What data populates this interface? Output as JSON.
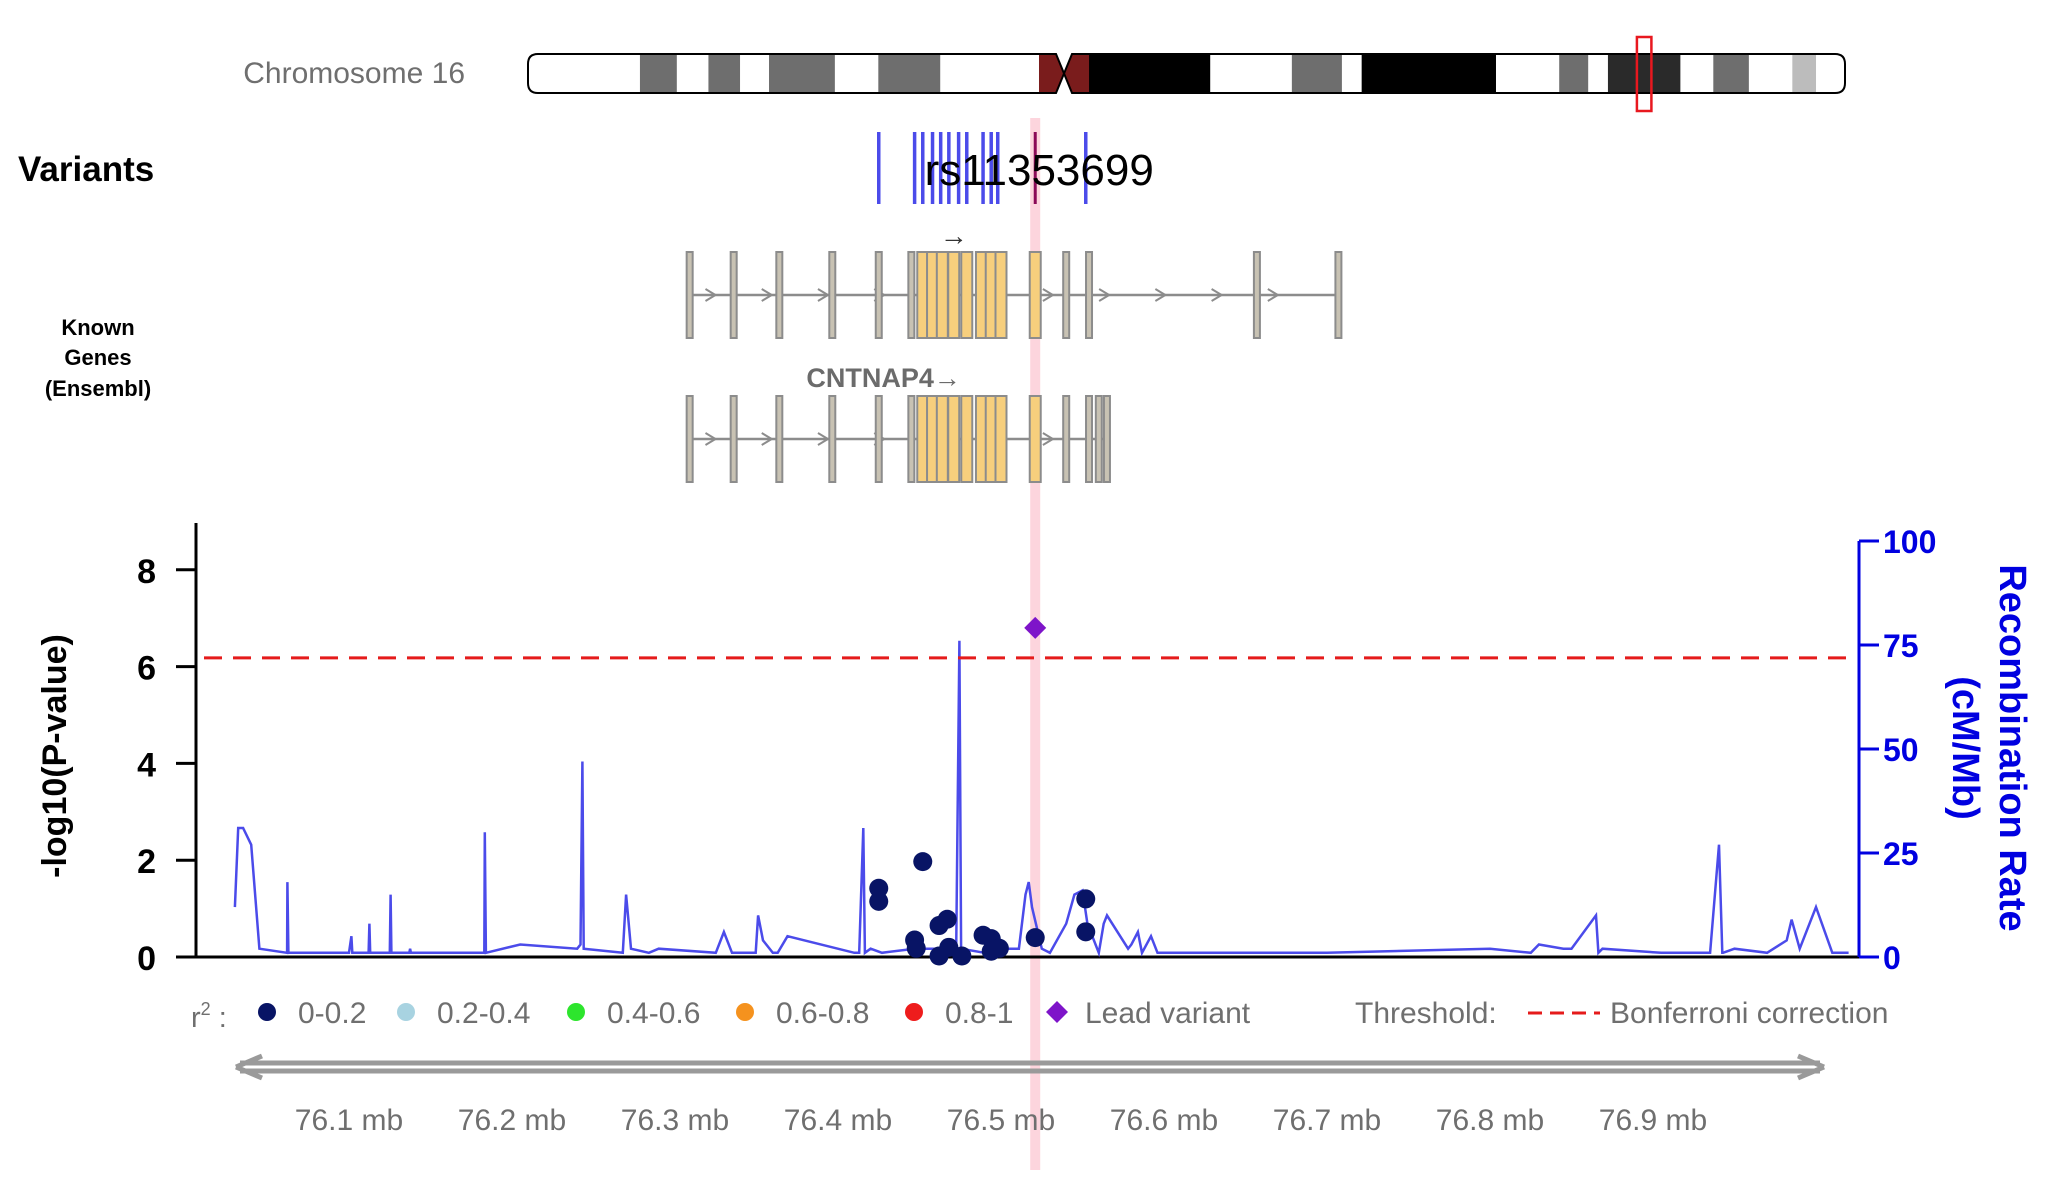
{
  "chromosome": {
    "label": "Chromosome 16",
    "bands": [
      {
        "from": 0.0,
        "to": 0.085,
        "fill": "#ffffff"
      },
      {
        "from": 0.085,
        "to": 0.113,
        "fill": "#6e6e6e"
      },
      {
        "from": 0.113,
        "to": 0.137,
        "fill": "#ffffff"
      },
      {
        "from": 0.137,
        "to": 0.161,
        "fill": "#6e6e6e"
      },
      {
        "from": 0.161,
        "to": 0.183,
        "fill": "#ffffff"
      },
      {
        "from": 0.183,
        "to": 0.233,
        "fill": "#6e6e6e"
      },
      {
        "from": 0.233,
        "to": 0.266,
        "fill": "#ffffff"
      },
      {
        "from": 0.266,
        "to": 0.313,
        "fill": "#6e6e6e"
      },
      {
        "from": 0.313,
        "to": 0.388,
        "fill": "#ffffff"
      },
      {
        "from": 0.388,
        "to": 0.426,
        "fill": "#7a1c1c"
      },
      {
        "from": 0.426,
        "to": 0.518,
        "fill": "#000000"
      },
      {
        "from": 0.518,
        "to": 0.58,
        "fill": "#ffffff"
      },
      {
        "from": 0.58,
        "to": 0.618,
        "fill": "#6e6e6e"
      },
      {
        "from": 0.618,
        "to": 0.633,
        "fill": "#ffffff"
      },
      {
        "from": 0.633,
        "to": 0.735,
        "fill": "#000000"
      },
      {
        "from": 0.735,
        "to": 0.783,
        "fill": "#ffffff"
      },
      {
        "from": 0.783,
        "to": 0.805,
        "fill": "#6e6e6e"
      },
      {
        "from": 0.805,
        "to": 0.82,
        "fill": "#ffffff"
      },
      {
        "from": 0.82,
        "to": 0.875,
        "fill": "#2a2a2a"
      },
      {
        "from": 0.875,
        "to": 0.9,
        "fill": "#ffffff"
      },
      {
        "from": 0.9,
        "to": 0.927,
        "fill": "#6e6e6e"
      },
      {
        "from": 0.927,
        "to": 0.96,
        "fill": "#ffffff"
      },
      {
        "from": 0.96,
        "to": 0.978,
        "fill": "#bcbcbc"
      },
      {
        "from": 0.978,
        "to": 1.0,
        "fill": "#ffffff"
      }
    ],
    "centromere": 0.407,
    "highlight_region": [
      0.842,
      0.853
    ],
    "highlight_color": "#e8181f"
  },
  "variants_track": {
    "title": "Variants",
    "lead_label": "rs11353699",
    "positions_mb": [
      76.425,
      76.447,
      76.452,
      76.458,
      76.463,
      76.468,
      76.474,
      76.479,
      76.489,
      76.494,
      76.498,
      76.521,
      76.552
    ],
    "lead_position_mb": 76.521,
    "tick_color": "#4b4bea",
    "lead_tick_color": "#8b0a57"
  },
  "genes_track": {
    "title_line1": "Known",
    "title_line2": "Genes",
    "title_line3": "(Ensembl)",
    "transcript1_arrow": "→",
    "gene_label": "CNTNAP4→",
    "transcript1_range_mb": [
      76.309,
      76.707
    ],
    "transcript2_range_mb": [
      76.309,
      76.565
    ],
    "exons_mb": [
      76.309,
      76.336,
      76.364,
      76.3965,
      76.425,
      76.445,
      76.452,
      76.458,
      76.464,
      76.471,
      76.479,
      76.488,
      76.494,
      76.5,
      76.521,
      76.54,
      76.554
    ],
    "coding_exons_mb": [
      76.4465,
      76.5375
    ],
    "transcript1_extra_exons_mb": [
      76.657,
      76.707
    ],
    "transcript2_extra_exons_mb": [
      76.56,
      76.565
    ]
  },
  "chart_data": {
    "type": "scatter",
    "x_axis": {
      "range_mb": [
        76.03,
        77.02
      ],
      "tick_values": [
        76.1,
        76.2,
        76.3,
        76.4,
        76.5,
        76.6,
        76.7,
        76.8,
        76.9
      ],
      "tick_labels": [
        "76.1 mb",
        "76.2 mb",
        "76.3 mb",
        "76.4 mb",
        "76.5 mb",
        "76.6 mb",
        "76.7 mb",
        "76.8 mb",
        "76.9 mb"
      ]
    },
    "y_left": {
      "label": "-log10(P-value)",
      "range": [
        0,
        8.8
      ],
      "tick_values": [
        0,
        2,
        4,
        6,
        8
      ],
      "tick_labels": [
        "0",
        "2",
        "4",
        "6",
        "8"
      ]
    },
    "y_right": {
      "label_line1": "Recombination Rate",
      "label_line2": "(cM/Mb)",
      "range": [
        0,
        100
      ],
      "tick_values": [
        0,
        25,
        50,
        75,
        100
      ],
      "tick_labels": [
        "0",
        "25",
        "50",
        "75",
        "100"
      ],
      "color": "#0000e0"
    },
    "threshold": {
      "value": 6.18,
      "color": "#e51b1b"
    },
    "lead_variant": {
      "name": "rs11353699",
      "x_mb": 76.521,
      "y": 6.8,
      "color": "#7e14c9"
    },
    "lead_highlight_color": "#fdd5dd",
    "points": [
      {
        "x_mb": 76.425,
        "y": 1.42
      },
      {
        "x_mb": 76.425,
        "y": 1.15
      },
      {
        "x_mb": 76.452,
        "y": 1.97
      },
      {
        "x_mb": 76.447,
        "y": 0.35
      },
      {
        "x_mb": 76.448,
        "y": 0.18
      },
      {
        "x_mb": 76.462,
        "y": 0.65
      },
      {
        "x_mb": 76.467,
        "y": 0.78
      },
      {
        "x_mb": 76.462,
        "y": 0.02
      },
      {
        "x_mb": 76.468,
        "y": 0.2
      },
      {
        "x_mb": 76.476,
        "y": 0.02
      },
      {
        "x_mb": 76.489,
        "y": 0.45
      },
      {
        "x_mb": 76.494,
        "y": 0.38
      },
      {
        "x_mb": 76.494,
        "y": 0.12
      },
      {
        "x_mb": 76.499,
        "y": 0.18
      },
      {
        "x_mb": 76.521,
        "y": 0.4
      },
      {
        "x_mb": 76.552,
        "y": 1.2
      },
      {
        "x_mb": 76.552,
        "y": 0.52
      }
    ],
    "point_color": "#081465",
    "recombination": {
      "color": "#4b4bea",
      "x_mb": [
        76.03,
        76.032,
        76.035,
        76.04,
        76.045,
        76.062,
        76.0622,
        76.0628,
        76.1,
        76.1015,
        76.102,
        76.112,
        76.1125,
        76.113,
        76.125,
        76.1255,
        76.126,
        76.137,
        76.1375,
        76.138,
        76.15,
        76.16,
        76.183,
        76.1833,
        76.184,
        76.205,
        76.24,
        76.242,
        76.2432,
        76.244,
        76.268,
        76.27,
        76.273,
        76.284,
        76.29,
        76.325,
        76.33,
        76.335,
        76.3495,
        76.351,
        76.354,
        76.36,
        76.363,
        76.369,
        76.41,
        76.413,
        76.4155,
        76.4165,
        76.42,
        76.427,
        76.447,
        76.4725,
        76.4745,
        76.4755,
        76.49,
        76.4905,
        76.491,
        76.5,
        76.511,
        76.515,
        76.517,
        76.519,
        76.525,
        76.53,
        76.54,
        76.545,
        76.55,
        76.553,
        76.56,
        76.563,
        76.565,
        76.578,
        76.58,
        76.584,
        76.5865,
        76.592,
        76.596,
        76.603,
        76.61,
        76.615,
        76.62,
        76.63,
        76.7,
        76.8,
        76.825,
        76.83,
        76.845,
        76.85,
        76.865,
        76.8665,
        76.869,
        76.905,
        76.935,
        76.9405,
        76.9425,
        76.943,
        76.95,
        76.97,
        76.982,
        76.985,
        76.99,
        77.0,
        77.01,
        77.02
      ],
      "rate": [
        12,
        31,
        31,
        27,
        2,
        1,
        18,
        1,
        1,
        5,
        1,
        1,
        8,
        1,
        1,
        15,
        1,
        1,
        2,
        1,
        1,
        1,
        1,
        30,
        1,
        3,
        2,
        3,
        47,
        2,
        1,
        15,
        2,
        1,
        2,
        1,
        6,
        1,
        1,
        10,
        4,
        1,
        1,
        5,
        1,
        1,
        31,
        1,
        2,
        1,
        2,
        2,
        76,
        2,
        1,
        2,
        3,
        2,
        2,
        15,
        18,
        12,
        2,
        1,
        8,
        15,
        16,
        8,
        1,
        8,
        10,
        2,
        3,
        6,
        1,
        5,
        1,
        1,
        1,
        1,
        1,
        1,
        1,
        2,
        1,
        3,
        2,
        2,
        10,
        1,
        2,
        1,
        1,
        27,
        1,
        1,
        2,
        1,
        4,
        9,
        2,
        12,
        1,
        1
      ]
    },
    "legend": {
      "r2_label": "r",
      "r2_sup": "2",
      "r2_colon": " :",
      "entries": [
        {
          "label": "0-0.2",
          "color": "#081465"
        },
        {
          "label": "0.2-0.4",
          "color": "#a8d3e1"
        },
        {
          "label": "0.4-0.6",
          "color": "#2de52d"
        },
        {
          "label": "0.6-0.8",
          "color": "#f5921e"
        },
        {
          "label": "0.8-1",
          "color": "#ee1c1c"
        }
      ],
      "lead_label": "Lead variant",
      "threshold_label": "Threshold:",
      "threshold_name": "Bonferroni correction"
    }
  }
}
